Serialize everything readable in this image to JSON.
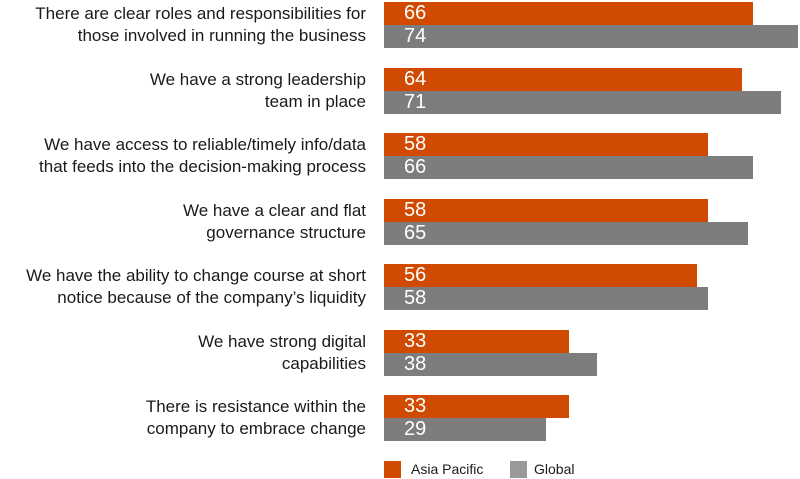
{
  "chart_data": {
    "type": "bar",
    "orientation": "horizontal",
    "categories": [
      [
        "There are clear roles and responsibilities for",
        "those involved in running the business"
      ],
      [
        "We have a strong leadership",
        "team in place"
      ],
      [
        "We have access to reliable/timely info/data",
        "that feeds into the decision-making process"
      ],
      [
        "We have a clear and flat",
        "governance structure"
      ],
      [
        "We have the ability to change course at short",
        "notice because of the company’s liquidity"
      ],
      [
        "We have strong digital",
        "capabilities"
      ],
      [
        "There is resistance within the",
        "company to embrace change"
      ]
    ],
    "series": [
      {
        "name": "Asia Pacific",
        "color": "#d04a02",
        "values": [
          66,
          64,
          58,
          58,
          56,
          33,
          33
        ]
      },
      {
        "name": "Global",
        "color": "#7d7d7d",
        "values": [
          74,
          71,
          66,
          65,
          58,
          38,
          29
        ]
      }
    ],
    "xlim": [
      0,
      74
    ],
    "grid": false,
    "legend_position": "bottom"
  },
  "legend": {
    "asia_pacific": "Asia Pacific",
    "global": "Global",
    "asia_color": "#d04a02",
    "global_color": "#999999"
  }
}
